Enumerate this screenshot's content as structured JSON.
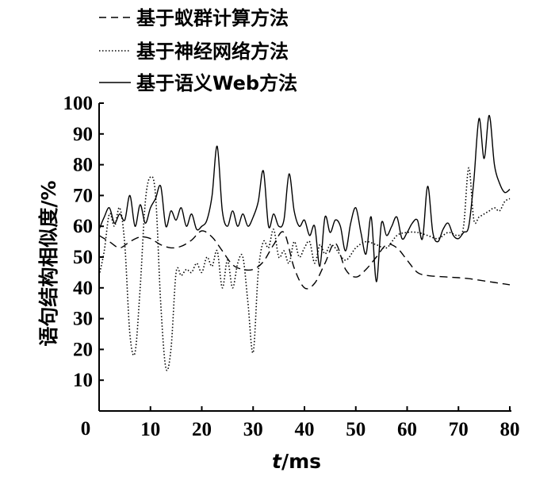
{
  "chart_data": {
    "type": "line",
    "xlabel": "t/ms",
    "xlabel_italic_part": "t",
    "xlabel_rest": "/ms",
    "ylabel": "语句结构相似度/%",
    "xlim": [
      0,
      80
    ],
    "ylim": [
      0,
      100
    ],
    "origin_label": "0",
    "x_ticks": [
      "10",
      "20",
      "30",
      "40",
      "50",
      "60",
      "70",
      "80"
    ],
    "y_ticks": [
      "10",
      "20",
      "30",
      "40",
      "50",
      "60",
      "70",
      "80",
      "90",
      "100"
    ],
    "grid": false,
    "legend_position": "top-left",
    "series": [
      {
        "name": "基于蚁群计算方法",
        "style": "dashed",
        "x": [
          0,
          2,
          4,
          6,
          8,
          10,
          12,
          14,
          16,
          18,
          20,
          22,
          24,
          26,
          28,
          30,
          32,
          34,
          36,
          38,
          40,
          42,
          44,
          46,
          48,
          50,
          52,
          54,
          56,
          58,
          60,
          62,
          64,
          66,
          68,
          70,
          72,
          74,
          76,
          78,
          80
        ],
        "y": [
          57,
          55,
          53,
          55,
          56.5,
          56,
          54,
          53,
          53.5,
          55.5,
          58.5,
          56.5,
          52,
          47.5,
          46,
          46,
          48.5,
          54,
          58,
          46.5,
          40,
          41.5,
          48,
          54.5,
          46,
          43.5,
          46,
          50,
          54,
          53,
          49,
          45,
          44,
          43.7,
          43.5,
          43.3,
          43,
          42.5,
          42,
          41.5,
          41
        ]
      },
      {
        "name": "基于神经网络方法",
        "style": "dotted",
        "x": [
          0,
          1,
          2,
          3,
          4,
          5,
          6,
          7,
          8,
          9,
          10,
          11,
          12,
          13,
          14,
          15,
          16,
          17,
          18,
          19,
          20,
          21,
          22,
          23,
          24,
          25,
          26,
          27,
          28,
          29,
          30,
          31,
          32,
          33,
          34,
          35,
          36,
          37,
          38,
          39,
          40,
          41,
          42,
          43,
          44,
          45,
          46,
          48,
          50,
          52,
          54,
          56,
          58,
          60,
          62,
          64,
          66,
          68,
          70,
          71,
          72,
          73,
          74,
          75,
          76,
          77,
          78,
          79,
          80
        ],
        "y": [
          44,
          52,
          64,
          60,
          66,
          54,
          25,
          19,
          40,
          68,
          76,
          70,
          35,
          14,
          20,
          45,
          44,
          46,
          45,
          48,
          45,
          50,
          47,
          52,
          40,
          49,
          40,
          48,
          50,
          35,
          19,
          45,
          55,
          53,
          59,
          50,
          52,
          48,
          55,
          50,
          53,
          55,
          48,
          54,
          51,
          54,
          53,
          49,
          53,
          55,
          54,
          53,
          57,
          58,
          58,
          57,
          56,
          58,
          57,
          60,
          79,
          62,
          63,
          64,
          65,
          66,
          65,
          68,
          69
        ]
      },
      {
        "name": "基于语义Web方法",
        "style": "solid",
        "x": [
          0,
          1,
          2,
          3,
          4,
          5,
          6,
          7,
          8,
          9,
          10,
          11,
          12,
          13,
          14,
          15,
          16,
          17,
          18,
          19,
          20,
          21,
          22,
          23,
          24,
          25,
          26,
          27,
          28,
          29,
          30,
          31,
          32,
          33,
          34,
          35,
          36,
          37,
          38,
          39,
          40,
          41,
          42,
          43,
          44,
          45,
          46,
          47,
          48,
          49,
          50,
          51,
          52,
          53,
          54,
          55,
          56,
          57,
          58,
          59,
          60,
          61,
          62,
          63,
          64,
          65,
          66,
          67,
          68,
          69,
          70,
          71,
          72,
          73,
          74,
          75,
          76,
          77,
          78,
          79,
          80
        ],
        "y": [
          59,
          63,
          66,
          61,
          64,
          62,
          70,
          60,
          67,
          61,
          66,
          69,
          73,
          60,
          65,
          62,
          66,
          60,
          64,
          59,
          60,
          62,
          70,
          86,
          65,
          60,
          65,
          60,
          64,
          60,
          63,
          68,
          78,
          60,
          64,
          60,
          62,
          77,
          65,
          60,
          62,
          57,
          60,
          47,
          63,
          58,
          62,
          60,
          52,
          61,
          66,
          58,
          51,
          63,
          42,
          61,
          57,
          60,
          63,
          56,
          58,
          61,
          62,
          56,
          73,
          58,
          55,
          59,
          61,
          57,
          56,
          58,
          60,
          75,
          95,
          82,
          96,
          80,
          74,
          71,
          72
        ]
      }
    ]
  }
}
